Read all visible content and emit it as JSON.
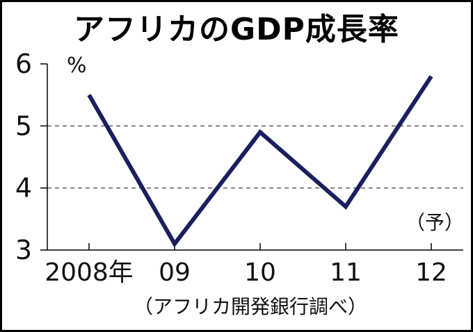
{
  "chart_data": {
    "type": "line",
    "title": "アフリカのGDP成長率",
    "unit": "%",
    "x": [
      "2008年",
      "09",
      "10",
      "11",
      "12"
    ],
    "series": [
      {
        "values": [
          5.5,
          3.1,
          4.9,
          3.7,
          5.8
        ]
      }
    ],
    "ylim": [
      3,
      6
    ],
    "yticks": [
      3,
      4,
      5,
      6
    ],
    "forecast_note": "（予）",
    "source": "（アフリカ開発銀行調べ）",
    "grid": "dashed horizontal at 4 and 5",
    "colors": {
      "line": "#1b1f5e",
      "grid": "#555555",
      "axis": "#000000"
    }
  }
}
